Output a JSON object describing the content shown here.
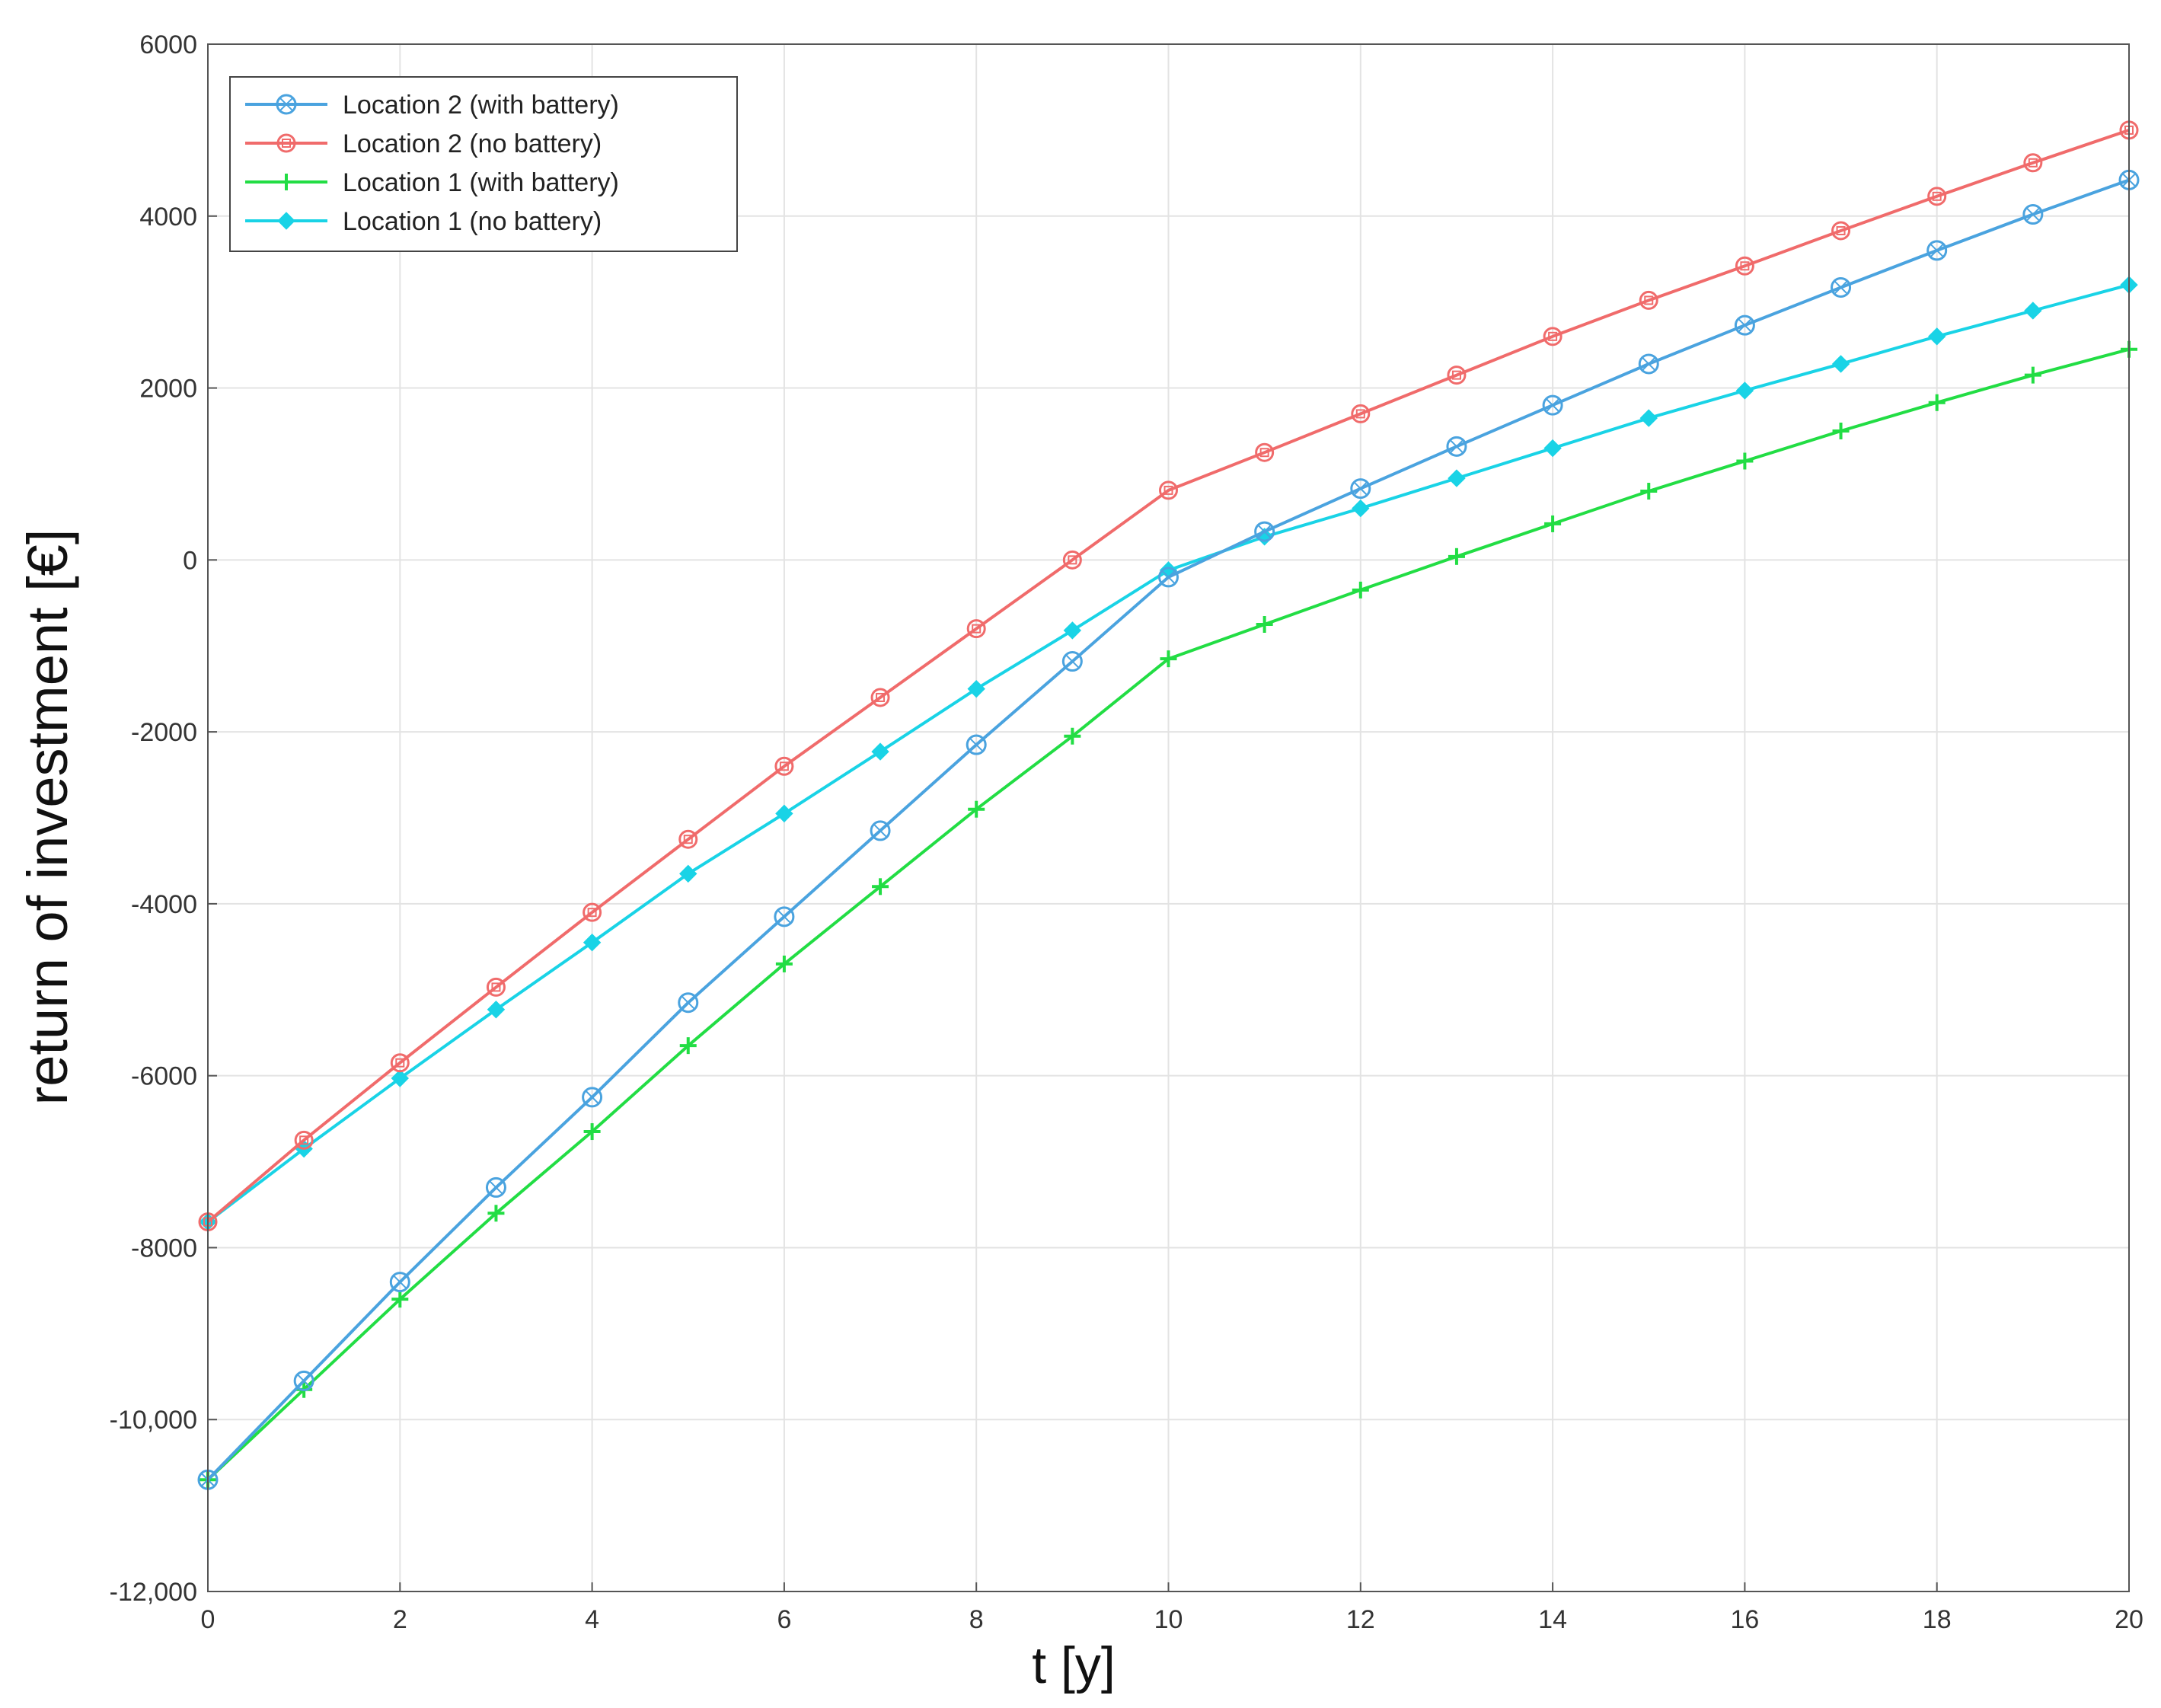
{
  "chart_data": {
    "type": "line",
    "title": "",
    "xlabel": "t [y]",
    "ylabel": "return of investment [€]",
    "xlim": [
      0,
      20
    ],
    "ylim": [
      -12000,
      6000
    ],
    "grid": true,
    "legend_position": "top-left",
    "x_ticks": [
      0,
      2,
      4,
      6,
      8,
      10,
      12,
      14,
      16,
      18,
      20
    ],
    "x_tick_labels": [
      "0",
      "2",
      "4",
      "6",
      "8",
      "10",
      "12",
      "14",
      "16",
      "18",
      "20"
    ],
    "y_ticks": [
      -12000,
      -10000,
      -8000,
      -6000,
      -4000,
      -2000,
      0,
      2000,
      4000,
      6000
    ],
    "y_tick_labels": [
      "-12,000",
      "-10,000",
      "-8000",
      "-6000",
      "-4000",
      "-2000",
      "0",
      "2000",
      "4000",
      "6000"
    ],
    "x": [
      0,
      1,
      2,
      3,
      4,
      5,
      6,
      7,
      8,
      9,
      10,
      11,
      12,
      13,
      14,
      15,
      16,
      17,
      18,
      19,
      20
    ],
    "series": [
      {
        "name": "Location 2 (with battery)",
        "color": "#4aa3df",
        "marker": "circle-cross",
        "values": [
          -10700,
          -9550,
          -8400,
          -7300,
          -6250,
          -5150,
          -4150,
          -3150,
          -2150,
          -1180,
          -200,
          330,
          830,
          1320,
          1800,
          2280,
          2730,
          3170,
          3600,
          4020,
          4420
        ]
      },
      {
        "name": "Location 2  (no battery)",
        "color": "#f06b6b",
        "marker": "circle-square",
        "values": [
          -7700,
          -6750,
          -5850,
          -4970,
          -4100,
          -3250,
          -2400,
          -1600,
          -800,
          0,
          810,
          1250,
          1700,
          2150,
          2600,
          3020,
          3420,
          3830,
          4230,
          4620,
          5000
        ]
      },
      {
        "name": "Location 1 (with battery)",
        "color": "#22dd44",
        "marker": "plus",
        "values": [
          -10700,
          -9650,
          -8600,
          -7600,
          -6650,
          -5650,
          -4700,
          -3800,
          -2900,
          -2050,
          -1150,
          -750,
          -350,
          40,
          420,
          800,
          1150,
          1500,
          1830,
          2150,
          2450
        ]
      },
      {
        "name": "Location 1  (no battery)",
        "color": "#19d3e6",
        "marker": "diamond",
        "values": [
          -7700,
          -6850,
          -6030,
          -5230,
          -4450,
          -3650,
          -2950,
          -2230,
          -1500,
          -820,
          -120,
          270,
          600,
          950,
          1300,
          1650,
          1970,
          2280,
          2600,
          2900,
          3200
        ]
      }
    ]
  }
}
